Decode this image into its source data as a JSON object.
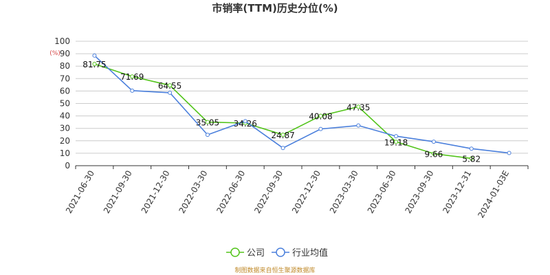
{
  "chart_data": {
    "type": "line",
    "title": "市销率(TTM)历史分位(%)",
    "ylabel_unit": "(%)",
    "ylim": [
      0,
      100
    ],
    "yticks": [
      0,
      10,
      20,
      30,
      40,
      50,
      60,
      70,
      80,
      90,
      100
    ],
    "grid": true,
    "legend_position": "bottom-center",
    "categories": [
      "2021-06-30",
      "2021-09-30",
      "2021-12-30",
      "2022-03-30",
      "2022-06-30",
      "2022-09-30",
      "2022-12-30",
      "2023-03-30",
      "2023-06-30",
      "2023-09-30",
      "2023-12-31",
      "2024-01-03E"
    ],
    "series": [
      {
        "name": "公司",
        "color": "#52c41a",
        "values": [
          81.75,
          71.69,
          64.55,
          35.05,
          34.26,
          24.87,
          40.08,
          47.35,
          19.18,
          9.66,
          5.82,
          null
        ],
        "labels": [
          "81.75",
          "71.69",
          "64.55",
          "35.05",
          "34.26",
          "24.87",
          "40.08",
          "47.35",
          "19.18",
          "9.66",
          "5.82",
          null
        ]
      },
      {
        "name": "行业均值",
        "color": "#4a7fdc",
        "values": [
          88.5,
          60.3,
          58.6,
          24.8,
          35.8,
          14.2,
          29.5,
          32.3,
          23.7,
          19.3,
          13.7,
          10.2
        ]
      }
    ]
  },
  "legend": {
    "company": "公司",
    "industry": "行业均值"
  },
  "source_note": "制图数据来自恒生聚源数据库"
}
